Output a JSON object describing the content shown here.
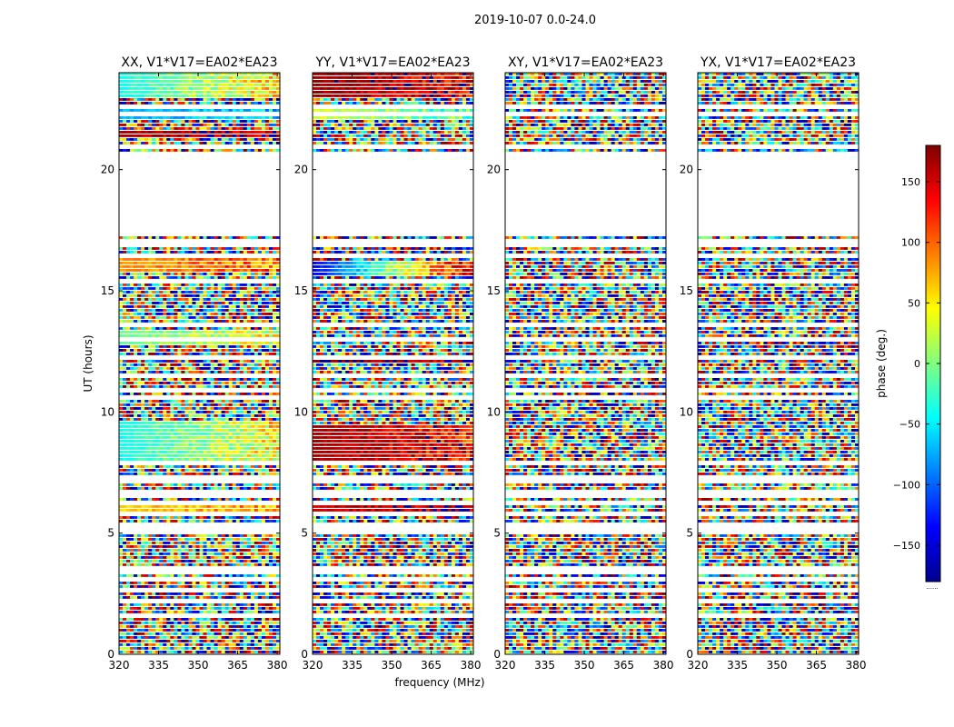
{
  "figure_title": "2019-10-07 0.0-24.0",
  "chart_data": {
    "type": "heatmap",
    "title": "2019-10-07 0.0-24.0",
    "xlabel": "frequency (MHz)",
    "ylabel": "UT (hours)",
    "xlim": [
      320,
      381
    ],
    "ylim": [
      0,
      24
    ],
    "x_ticks": [
      320,
      335,
      350,
      365,
      380
    ],
    "y_ticks": [
      0,
      5,
      10,
      15,
      20
    ],
    "panels": [
      {
        "title": "XX, V1*V17=EA02*EA23",
        "coherent_bands": [
          {
            "t0": 23.0,
            "t1": 24.0,
            "phase_start": -40,
            "phase_end": 60
          },
          {
            "t0": 22.0,
            "t1": 22.7,
            "phase_start": -70,
            "phase_end": -55
          },
          {
            "t0": 21.35,
            "t1": 21.55,
            "phase_start": 160,
            "phase_end": 170
          },
          {
            "t0": 15.8,
            "t1": 16.3,
            "phase_start": 80,
            "phase_end": 100
          },
          {
            "t0": 12.8,
            "t1": 13.3,
            "phase_start": -10,
            "phase_end": 40
          },
          {
            "t0": 12.1,
            "t1": 12.35,
            "phase_start": -30,
            "phase_end": 10
          },
          {
            "t0": 8.0,
            "t1": 9.6,
            "phase_start": -40,
            "phase_end": 50
          },
          {
            "t0": 5.9,
            "t1": 6.2,
            "phase_start": 60,
            "phase_end": 80
          }
        ]
      },
      {
        "title": "YY, V1*V17=EA02*EA23",
        "coherent_bands": [
          {
            "t0": 23.0,
            "t1": 24.0,
            "phase_start": 170,
            "phase_end": 140
          },
          {
            "t0": 22.0,
            "t1": 22.7,
            "phase_start": 30,
            "phase_end": -20
          },
          {
            "t0": 15.6,
            "t1": 16.2,
            "phase_start": -140,
            "phase_end": 150
          },
          {
            "t0": 12.0,
            "t1": 12.3,
            "phase_start": 175,
            "phase_end": 165
          },
          {
            "t0": 8.0,
            "t1": 9.5,
            "phase_start": 165,
            "phase_end": 130
          },
          {
            "t0": 5.8,
            "t1": 6.1,
            "phase_start": 150,
            "phase_end": 170
          }
        ]
      },
      {
        "title": "XY, V1*V17=EA02*EA23",
        "coherent_bands": []
      },
      {
        "title": "YX, V1*V17=EA02*EA23",
        "coherent_bands": []
      }
    ],
    "flagged_time_ranges": [
      [
        17.2,
        20.6
      ],
      [
        16.95,
        17.05
      ],
      [
        5.65,
        5.8
      ],
      [
        2.05,
        2.12
      ],
      [
        1.9,
        1.95
      ]
    ],
    "colorbar": {
      "label": "phase (deg.)",
      "range": [
        -180,
        180
      ],
      "ticks": [
        150,
        100,
        50,
        0,
        -50,
        -100,
        -150
      ],
      "colormap": "jet",
      "below_label": "......"
    }
  }
}
